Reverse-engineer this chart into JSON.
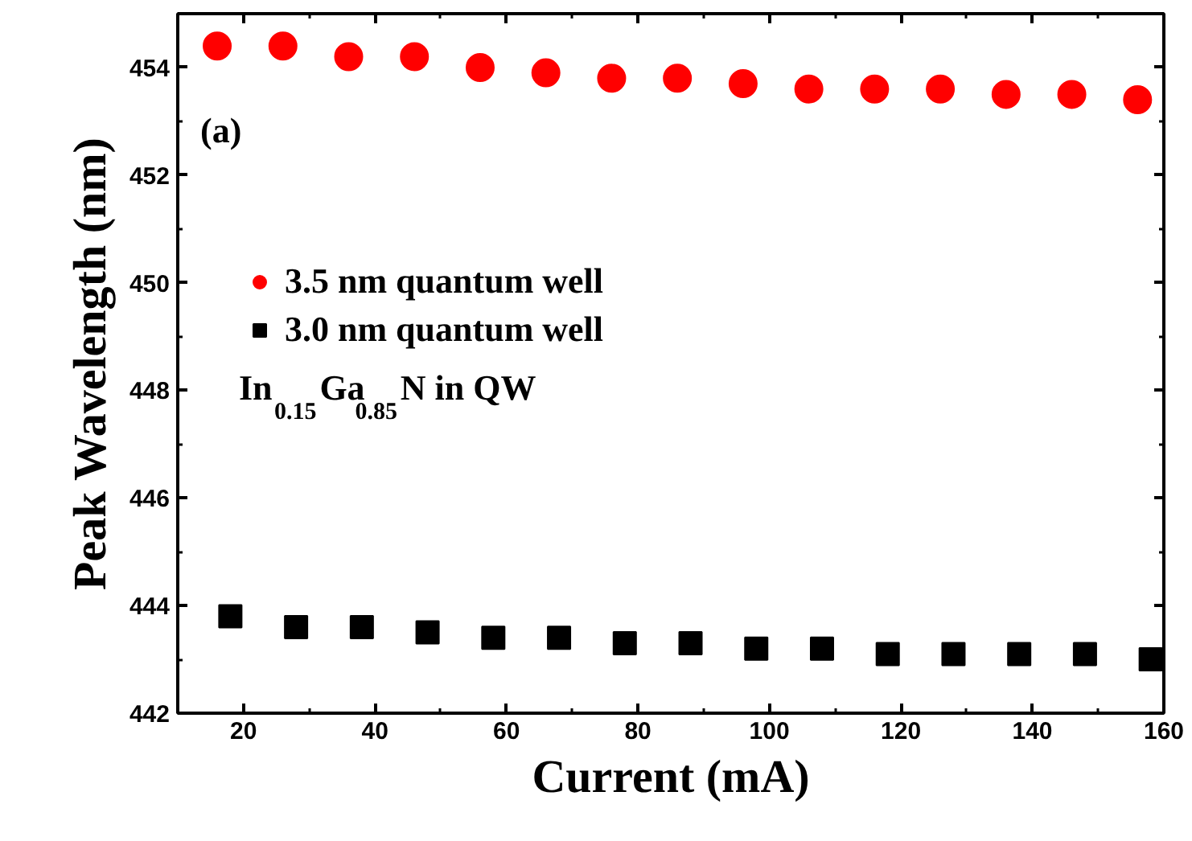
{
  "chart_data": {
    "type": "scatter",
    "xlabel": "Current (mA)",
    "ylabel": "Peak Wavelength (nm)",
    "annotations": [
      "(a)",
      "In$_{0.15}$Ga$_{0.85}$N in QW"
    ],
    "series": [
      {
        "name": "3.5 nm quantum well",
        "color": "#ff0000",
        "marker": "circle",
        "x": [
          16,
          26,
          36,
          46,
          56,
          66,
          76,
          86,
          96,
          106,
          116,
          126,
          136,
          146,
          156
        ],
        "values": [
          454.4,
          454.4,
          454.2,
          454.2,
          454.0,
          453.9,
          453.8,
          453.8,
          453.7,
          453.6,
          453.6,
          453.6,
          453.5,
          453.5,
          453.4
        ]
      },
      {
        "name": "3.0 nm quantum well",
        "color": "#000000",
        "marker": "square",
        "x": [
          18,
          28,
          38,
          48,
          58,
          68,
          78,
          88,
          98,
          108,
          118,
          128,
          138,
          148,
          158
        ],
        "values": [
          443.8,
          443.6,
          443.6,
          443.5,
          443.4,
          443.4,
          443.3,
          443.3,
          443.2,
          443.2,
          443.1,
          443.1,
          443.1,
          443.1,
          443.0
        ]
      }
    ],
    "xlim": [
      10,
      160
    ],
    "ylim": [
      442,
      455
    ],
    "xticks": [
      20,
      40,
      60,
      80,
      100,
      120,
      140,
      160
    ],
    "yticks": [
      442,
      444,
      446,
      448,
      450,
      452,
      454
    ],
    "grid": false,
    "legend": "left"
  }
}
